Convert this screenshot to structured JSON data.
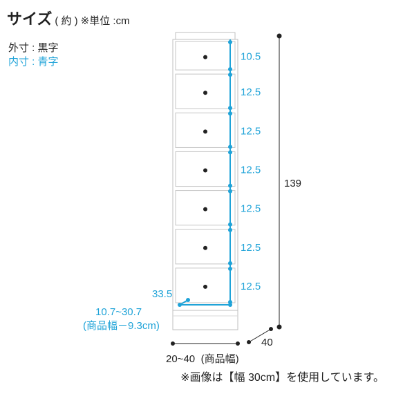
{
  "header": {
    "title": "サイズ",
    "subtitle": "( 約 )",
    "unit": "※単位 :cm"
  },
  "legend": {
    "outer": "外寸 : 黒字",
    "inner": "内寸 : 青字"
  },
  "dimensions": {
    "height_total": "139",
    "depth": "40",
    "width_range": "20~40",
    "width_note": "(商品幅)",
    "drawer_heights": [
      "10.5",
      "12.5",
      "12.5",
      "12.5",
      "12.5",
      "12.5",
      "12.5"
    ],
    "inner_depth": "33.5",
    "inner_width_range": "10.7~30.7",
    "inner_width_note": "(商品幅－9.3cm)"
  },
  "footer": {
    "note": "※画像は【幅 30cm】を使用しています。"
  },
  "colors": {
    "inner_blue": "#1fa3d8",
    "outline": "#bfbfbf",
    "knob": "#222222"
  }
}
